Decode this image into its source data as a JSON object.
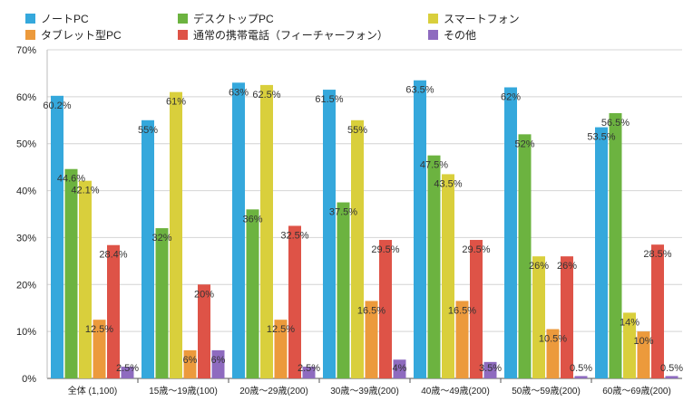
{
  "chart_data": {
    "type": "bar",
    "categories": [
      "全体 (1,100)",
      "15歳〜19歳(100)",
      "20歳〜29歳(200)",
      "30歳〜39歳(200)",
      "40歳〜49歳(200)",
      "50歳〜59歳(200)",
      "60歳〜69歳(200)"
    ],
    "series": [
      {
        "name": "ノートPC",
        "color": "#35a8dc",
        "values": [
          60.2,
          55,
          63,
          61.5,
          63.5,
          62,
          53.5
        ],
        "labels": [
          "60.2%",
          "55%",
          "63%",
          "61.5%",
          "63.5%",
          "62%",
          "53.5%"
        ]
      },
      {
        "name": "デスクトップPC",
        "color": "#6cb340",
        "values": [
          44.6,
          32,
          36,
          37.5,
          47.5,
          52,
          56.5
        ],
        "labels": [
          "44.6%",
          "32%",
          "36%",
          "37.5%",
          "47.5%",
          "52%",
          "56.5%"
        ]
      },
      {
        "name": "スマートフォン",
        "color": "#d9cf3c",
        "values": [
          42.1,
          61,
          62.5,
          55,
          43.5,
          26,
          14
        ],
        "labels": [
          "42.1%",
          "61%",
          "62.5%",
          "55%",
          "43.5%",
          "26%",
          "14%"
        ]
      },
      {
        "name": "タブレット型PC",
        "color": "#ec9a3c",
        "values": [
          12.5,
          6,
          12.5,
          16.5,
          16.5,
          10.5,
          10
        ],
        "labels": [
          "12.5%",
          "6%",
          "12.5%",
          "16.5%",
          "16.5%",
          "10.5%",
          "10%"
        ]
      },
      {
        "name": "通常の携帯電話（フィーチャーフォン）",
        "color": "#de5347",
        "values": [
          28.4,
          20,
          32.5,
          29.5,
          29.5,
          26,
          28.5
        ],
        "labels": [
          "28.4%",
          "20%",
          "32.5%",
          "29.5%",
          "29.5%",
          "26%",
          "28.5%"
        ]
      },
      {
        "name": "その他",
        "color": "#8e6bbf",
        "values": [
          2.5,
          6,
          2.5,
          4,
          3.5,
          0.5,
          0.5
        ],
        "labels": [
          "2.5%",
          "6%",
          "2.5%",
          "4%",
          "3.5%",
          "0.5%",
          "0.5%"
        ]
      }
    ],
    "ylim": [
      0,
      70
    ],
    "yticks": [
      "0%",
      "10%",
      "20%",
      "30%",
      "40%",
      "50%",
      "60%",
      "70%"
    ],
    "grid": true,
    "legend": "top"
  }
}
